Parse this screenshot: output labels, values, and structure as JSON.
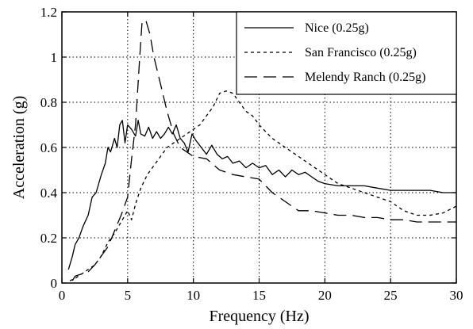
{
  "chart_data": {
    "type": "line",
    "xlabel": "Frequency (Hz)",
    "ylabel": "Acceleration (g)",
    "xlim": [
      0,
      30
    ],
    "ylim": [
      0,
      1.2
    ],
    "xticks": [
      0,
      5,
      10,
      15,
      20,
      25,
      30
    ],
    "yticks": [
      0,
      0.2,
      0.4,
      0.6,
      0.8,
      1,
      1.2
    ],
    "ytick_labels": [
      "0",
      "0.2",
      "0.4",
      "0.6",
      "0.8",
      "1",
      "1.2"
    ],
    "grid": "dotted",
    "legend_position": "top-right",
    "series": [
      {
        "name": "Nice (0.25g)",
        "line_style": "solid",
        "x": [
          0.5,
          0.8,
          1.0,
          1.3,
          1.6,
          2.0,
          2.3,
          2.6,
          3.0,
          3.3,
          3.5,
          3.7,
          4.0,
          4.2,
          4.4,
          4.6,
          4.8,
          5.0,
          5.3,
          5.6,
          5.8,
          6.0,
          6.3,
          6.6,
          6.9,
          7.2,
          7.5,
          7.8,
          8.1,
          8.4,
          8.7,
          9.0,
          9.3,
          9.6,
          9.9,
          10.2,
          10.6,
          11.0,
          11.4,
          11.8,
          12.2,
          12.6,
          13.0,
          13.5,
          14.0,
          14.5,
          15.0,
          15.5,
          16.0,
          16.5,
          17.0,
          17.5,
          18.0,
          18.5,
          19.0,
          19.5,
          20.0,
          21.0,
          22.0,
          23.0,
          24.0,
          25.0,
          26.0,
          27.0,
          28.0,
          29.0,
          30.0
        ],
        "y": [
          0.06,
          0.12,
          0.17,
          0.2,
          0.25,
          0.3,
          0.38,
          0.4,
          0.48,
          0.53,
          0.6,
          0.58,
          0.64,
          0.6,
          0.7,
          0.72,
          0.62,
          0.7,
          0.68,
          0.65,
          0.72,
          0.66,
          0.65,
          0.69,
          0.64,
          0.67,
          0.64,
          0.66,
          0.69,
          0.66,
          0.7,
          0.64,
          0.62,
          0.58,
          0.66,
          0.63,
          0.6,
          0.57,
          0.61,
          0.57,
          0.55,
          0.56,
          0.53,
          0.54,
          0.51,
          0.53,
          0.51,
          0.52,
          0.48,
          0.5,
          0.47,
          0.5,
          0.48,
          0.49,
          0.47,
          0.45,
          0.44,
          0.43,
          0.43,
          0.43,
          0.42,
          0.41,
          0.41,
          0.41,
          0.41,
          0.4,
          0.4
        ]
      },
      {
        "name": "San Francisco (0.25g)",
        "line_style": "short-dashed",
        "x": [
          0.6,
          1.0,
          1.5,
          2.0,
          2.5,
          3.0,
          3.5,
          4.0,
          4.5,
          5.0,
          5.3,
          5.6,
          6.0,
          6.5,
          7.0,
          7.5,
          8.0,
          8.5,
          9.0,
          9.5,
          10.0,
          10.5,
          11.0,
          11.5,
          12.0,
          12.5,
          13.0,
          13.5,
          14.0,
          14.5,
          15.0,
          16.0,
          17.0,
          18.0,
          19.0,
          20.0,
          21.0,
          22.0,
          23.0,
          24.0,
          25.0,
          26.0,
          27.0,
          28.0,
          29.0,
          30.0
        ],
        "y": [
          0.01,
          0.02,
          0.04,
          0.06,
          0.08,
          0.12,
          0.18,
          0.22,
          0.27,
          0.32,
          0.28,
          0.35,
          0.42,
          0.48,
          0.52,
          0.56,
          0.6,
          0.62,
          0.64,
          0.66,
          0.68,
          0.7,
          0.74,
          0.78,
          0.84,
          0.85,
          0.84,
          0.8,
          0.76,
          0.74,
          0.7,
          0.64,
          0.6,
          0.56,
          0.52,
          0.48,
          0.44,
          0.42,
          0.4,
          0.38,
          0.36,
          0.32,
          0.3,
          0.3,
          0.31,
          0.34
        ]
      },
      {
        "name": "Melendy Ranch (0.25g)",
        "line_style": "long-dashed",
        "x": [
          0.8,
          1.0,
          1.5,
          2.0,
          2.5,
          3.0,
          3.5,
          4.0,
          4.5,
          5.0,
          5.3,
          5.6,
          5.9,
          6.1,
          6.4,
          6.7,
          7.0,
          7.5,
          8.0,
          8.5,
          9.0,
          9.5,
          10.0,
          11.0,
          12.0,
          13.0,
          14.0,
          15.0,
          16.0,
          17.0,
          18.0,
          19.0,
          20.0,
          21.0,
          22.0,
          23.0,
          24.0,
          25.0,
          26.0,
          27.0,
          28.0,
          29.0,
          30.0
        ],
        "y": [
          0.01,
          0.03,
          0.04,
          0.05,
          0.08,
          0.12,
          0.16,
          0.23,
          0.3,
          0.38,
          0.55,
          0.7,
          0.98,
          1.16,
          1.16,
          1.1,
          1.0,
          0.88,
          0.76,
          0.66,
          0.6,
          0.58,
          0.56,
          0.55,
          0.5,
          0.48,
          0.47,
          0.46,
          0.4,
          0.36,
          0.32,
          0.32,
          0.31,
          0.3,
          0.3,
          0.29,
          0.29,
          0.28,
          0.28,
          0.27,
          0.27,
          0.27,
          0.27
        ]
      }
    ]
  }
}
